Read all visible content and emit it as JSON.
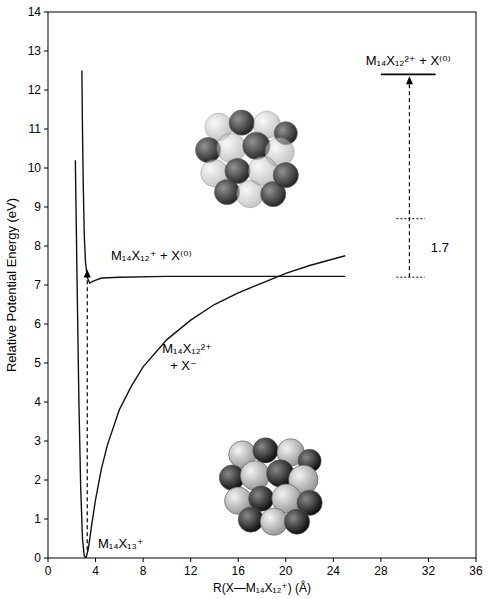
{
  "chart_data": {
    "type": "line",
    "xlabel": "R(X—M₁₄X₁₂⁺) (Å)",
    "ylabel": "Relative Potential Energy (eV)",
    "xlim": [
      0,
      36
    ],
    "xticks": [
      0,
      4,
      8,
      12,
      16,
      20,
      24,
      28,
      32,
      36
    ],
    "ylim": [
      0,
      14
    ],
    "yticks": [
      0,
      1,
      2,
      3,
      4,
      5,
      6,
      7,
      8,
      9,
      10,
      11,
      12,
      13,
      14
    ],
    "grid": false,
    "series": [
      {
        "name": "M₁₄X₁₂²⁺ + X⁻",
        "color": "#111111",
        "line_style": "solid",
        "x": [
          2.3,
          2.45,
          2.6,
          2.75,
          2.9,
          3.05,
          3.2,
          3.4,
          3.7,
          4.0,
          4.5,
          5,
          6,
          7,
          8,
          10,
          12,
          14,
          16,
          18,
          20,
          22,
          25
        ],
        "values": [
          10.2,
          7,
          4,
          1.8,
          0.5,
          0.05,
          0,
          0.25,
          0.9,
          1.5,
          2.3,
          2.9,
          3.8,
          4.4,
          4.9,
          5.6,
          6.1,
          6.5,
          6.8,
          7.05,
          7.3,
          7.5,
          7.75
        ]
      },
      {
        "name": "M₁₄X₁₂⁺ + X⁽⁰⁾",
        "color": "#111111",
        "line_style": "solid",
        "x": [
          2.85,
          2.9,
          2.97,
          3.05,
          3.15,
          3.3,
          3.5,
          3.8,
          4.5,
          6,
          10,
          15,
          20,
          25
        ],
        "values": [
          12.5,
          11,
          9.5,
          8.3,
          7.6,
          7.2,
          7.05,
          7.1,
          7.18,
          7.2,
          7.22,
          7.22,
          7.22,
          7.22
        ]
      }
    ],
    "annotations": [
      {
        "text": "M₁₄X₁₃⁺",
        "x": 4.2,
        "y": 0.25
      },
      {
        "text": "1.7",
        "x": 32.2,
        "y": 7.85
      }
    ],
    "energy_levels": [
      {
        "label": "M₁₄X₁₂²⁺ + X⁽⁰⁾",
        "y": 12.4,
        "x": [
          28,
          32.6
        ]
      }
    ],
    "reference_lines": [
      {
        "y": 8.7,
        "x": [
          29.3,
          31.7
        ]
      },
      {
        "y": 7.2,
        "x": [
          29.3,
          31.7
        ]
      }
    ],
    "arrows": [
      {
        "x": 3.3,
        "from": 0.2,
        "to": 7.4
      },
      {
        "x": 30.4,
        "from": 7.2,
        "to": 12.35
      }
    ]
  }
}
